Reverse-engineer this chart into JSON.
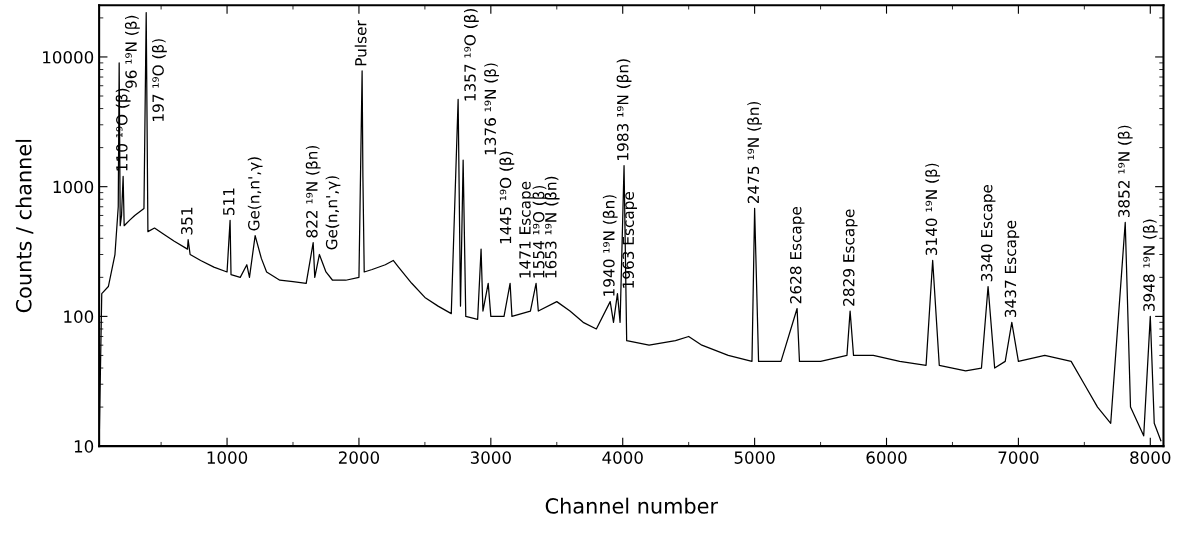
{
  "chart_data": {
    "type": "line",
    "xlabel": "Channel number",
    "ylabel": "Counts / channel",
    "xlim": [
      30,
      8100
    ],
    "ylim": [
      10,
      25000
    ],
    "log": "y",
    "grid": false,
    "marker": "none",
    "line_style": "solid",
    "xticks": [
      1000,
      2000,
      3000,
      4000,
      5000,
      6000,
      7000,
      8000
    ],
    "yticks": [
      10,
      100,
      1000,
      10000
    ],
    "series": [
      {
        "color": "#000000",
        "x": [
          30,
          50,
          100,
          150,
          175,
          182,
          190,
          200,
          212,
          220,
          260,
          300,
          370,
          387,
          400,
          450,
          520,
          600,
          700,
          705,
          720,
          800,
          900,
          1000,
          1023,
          1030,
          1100,
          1150,
          1170,
          1213,
          1260,
          1300,
          1400,
          1500,
          1600,
          1653,
          1665,
          1700,
          1750,
          1800,
          1900,
          2000,
          2024,
          2030,
          2040,
          2100,
          2200,
          2260,
          2300,
          2400,
          2500,
          2600,
          2700,
          2752,
          2770,
          2790,
          2810,
          2900,
          2926,
          2940,
          2980,
          3000,
          3100,
          3146,
          3160,
          3300,
          3343,
          3360,
          3500,
          3600,
          3700,
          3800,
          3905,
          3930,
          3960,
          3980,
          4010,
          4030,
          4200,
          4400,
          4500,
          4600,
          4800,
          4980,
          5000,
          5030,
          5200,
          5322,
          5340,
          5500,
          5700,
          5724,
          5750,
          5900,
          6100,
          6300,
          6350,
          6400,
          6600,
          6720,
          6770,
          6820,
          6900,
          6950,
          7000,
          7200,
          7400,
          7500,
          7600,
          7700,
          7780,
          7810,
          7850,
          7950,
          8000,
          8030,
          8080
        ],
        "values": [
          10,
          150,
          170,
          300,
          700,
          9000,
          500,
          600,
          1200,
          500,
          550,
          600,
          680,
          22000,
          450,
          480,
          430,
          380,
          330,
          390,
          300,
          270,
          240,
          220,
          550,
          210,
          200,
          250,
          200,
          420,
          280,
          220,
          190,
          185,
          180,
          370,
          200,
          300,
          220,
          190,
          190,
          200,
          7800,
          1200,
          220,
          230,
          250,
          270,
          240,
          180,
          140,
          120,
          105,
          4700,
          120,
          1600,
          100,
          95,
          330,
          110,
          180,
          100,
          100,
          180,
          100,
          110,
          180,
          110,
          130,
          110,
          90,
          80,
          130,
          90,
          150,
          90,
          1450,
          65,
          60,
          65,
          70,
          60,
          50,
          45,
          680,
          45,
          45,
          115,
          45,
          45,
          50,
          110,
          50,
          50,
          45,
          42,
          270,
          42,
          38,
          40,
          170,
          40,
          45,
          90,
          45,
          50,
          45,
          30,
          20,
          15,
          200,
          530,
          20,
          12,
          100,
          15,
          11
        ]
      }
    ],
    "annotations": [
      {
        "text": "96 ¹⁹N (β)",
        "x": 182,
        "y": 9000
      },
      {
        "text": "110 ¹⁹O (β)",
        "x": 212,
        "y": 1200
      },
      {
        "text": "197 ¹⁹O (β)",
        "x": 387,
        "y": 22000
      },
      {
        "text": "351",
        "x": 705,
        "y": 390
      },
      {
        "text": "511",
        "x": 1023,
        "y": 550
      },
      {
        "text": "Ge(n,n',γ)",
        "x": 1213,
        "y": 420
      },
      {
        "text": "822 ¹⁹N (βn)",
        "x": 1653,
        "y": 370
      },
      {
        "text": "Ge(n,n',γ)",
        "x": 1700,
        "y": 300
      },
      {
        "text": "Pulser",
        "x": 2024,
        "y": 7800
      },
      {
        "text": "1357 ¹⁹O (β)",
        "x": 2752,
        "y": 4700
      },
      {
        "text": "1376 ¹⁹N (β)",
        "x": 2790,
        "y": 1600
      },
      {
        "text": "1445 ¹⁹O (β)",
        "x": 2926,
        "y": 330
      },
      {
        "text": "1471 Escape",
        "x": 2980,
        "y": 180
      },
      {
        "text": "1554 ¹⁹O (β)",
        "x": 3146,
        "y": 180
      },
      {
        "text": "1653 ¹⁹N (βn)",
        "x": 3343,
        "y": 180
      },
      {
        "text": "1940 ¹⁹N (βn)",
        "x": 3905,
        "y": 130
      },
      {
        "text": "1963 Escape",
        "x": 3960,
        "y": 150
      },
      {
        "text": "1983 ¹⁹N (βn)",
        "x": 4010,
        "y": 1450
      },
      {
        "text": "2475 ¹⁹N (βn)",
        "x": 5000,
        "y": 680
      },
      {
        "text": "2628 Escape",
        "x": 5322,
        "y": 115
      },
      {
        "text": "2829 Escape",
        "x": 5724,
        "y": 110
      },
      {
        "text": "3140 ¹⁹N (β)",
        "x": 6350,
        "y": 270
      },
      {
        "text": "3340 Escape",
        "x": 6770,
        "y": 170
      },
      {
        "text": "3437 Escape",
        "x": 6950,
        "y": 90
      },
      {
        "text": "3852 ¹⁹N (β)",
        "x": 7810,
        "y": 530
      },
      {
        "text": "3948 ¹⁹N (β)",
        "x": 8000,
        "y": 100
      }
    ]
  }
}
